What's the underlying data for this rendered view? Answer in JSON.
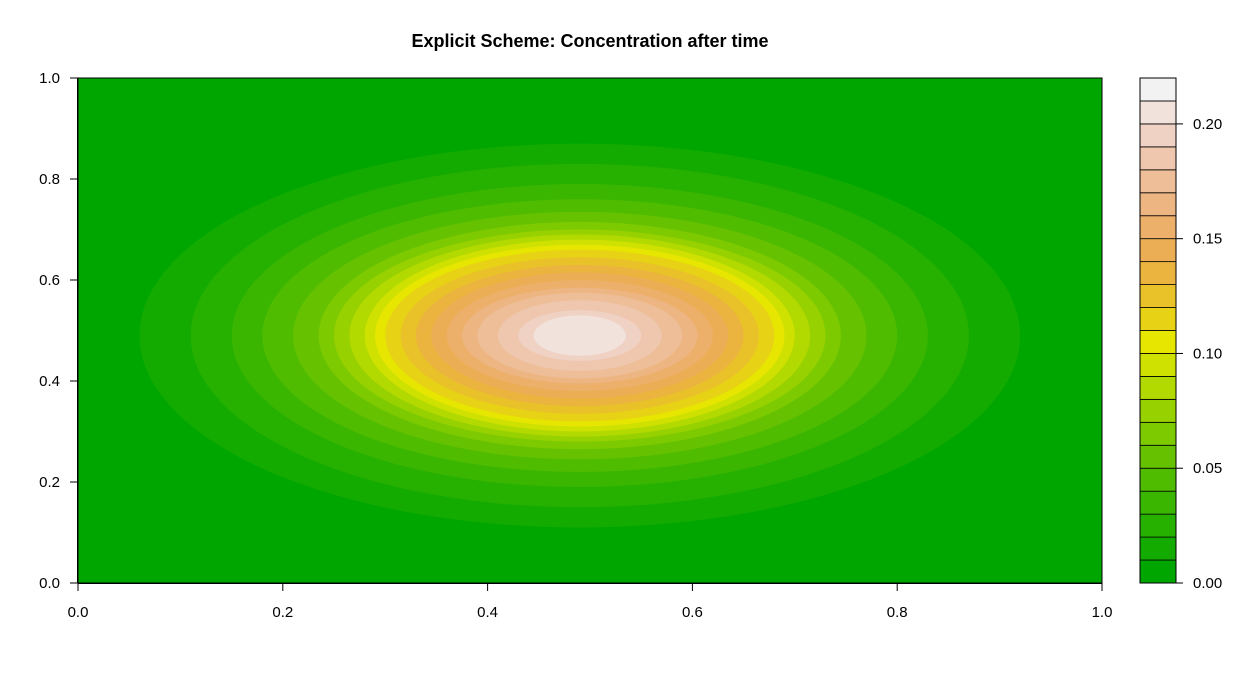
{
  "chart_data": {
    "type": "heatmap",
    "title": "Explicit Scheme: Concentration after time",
    "xlabel": "",
    "ylabel": "",
    "xlim": [
      0.0,
      1.0
    ],
    "ylim": [
      0.0,
      1.0
    ],
    "x_ticks": [
      "0.0",
      "0.2",
      "0.4",
      "0.6",
      "0.8",
      "1.0"
    ],
    "y_ticks": [
      "0.0",
      "0.2",
      "0.4",
      "0.6",
      "0.8",
      "1.0"
    ],
    "peak": {
      "x": 0.49,
      "y": 0.49,
      "value": 0.22
    },
    "contour_levels": [
      0.0,
      0.01,
      0.02,
      0.03,
      0.04,
      0.05,
      0.06,
      0.07,
      0.08,
      0.09,
      0.1,
      0.11,
      0.12,
      0.13,
      0.14,
      0.15,
      0.16,
      0.17,
      0.18,
      0.19,
      0.2,
      0.21,
      0.22
    ],
    "contour_half_widths_x": [
      0.43,
      0.38,
      0.34,
      0.31,
      0.28,
      0.255,
      0.24,
      0.225,
      0.21,
      0.2,
      0.19,
      0.175,
      0.16,
      0.145,
      0.13,
      0.115,
      0.1,
      0.08,
      0.06,
      0.045
    ],
    "contour_half_heights_y": [
      0.38,
      0.34,
      0.3,
      0.27,
      0.245,
      0.225,
      0.21,
      0.2,
      0.19,
      0.18,
      0.17,
      0.155,
      0.14,
      0.125,
      0.11,
      0.095,
      0.085,
      0.07,
      0.05,
      0.04
    ],
    "colorbar": {
      "ticks": [
        "0.00",
        "0.05",
        "0.10",
        "0.15",
        "0.20"
      ],
      "range": [
        0.0,
        0.22
      ],
      "colors": [
        "#00A600",
        "#13AB00",
        "#26B000",
        "#3AB600",
        "#50BC00",
        "#66C200",
        "#7ECA00",
        "#97D100",
        "#B2D900",
        "#CEE100",
        "#E6E600",
        "#E8D215",
        "#E9C22A",
        "#EAB43E",
        "#EBAE54",
        "#ECB06A",
        "#EDB581",
        "#EEBE98",
        "#EFC7AE",
        "#F0D2C5",
        "#F1E2DB",
        "#F2F2F2"
      ]
    },
    "grid": false,
    "legend": "colorbar-right"
  }
}
